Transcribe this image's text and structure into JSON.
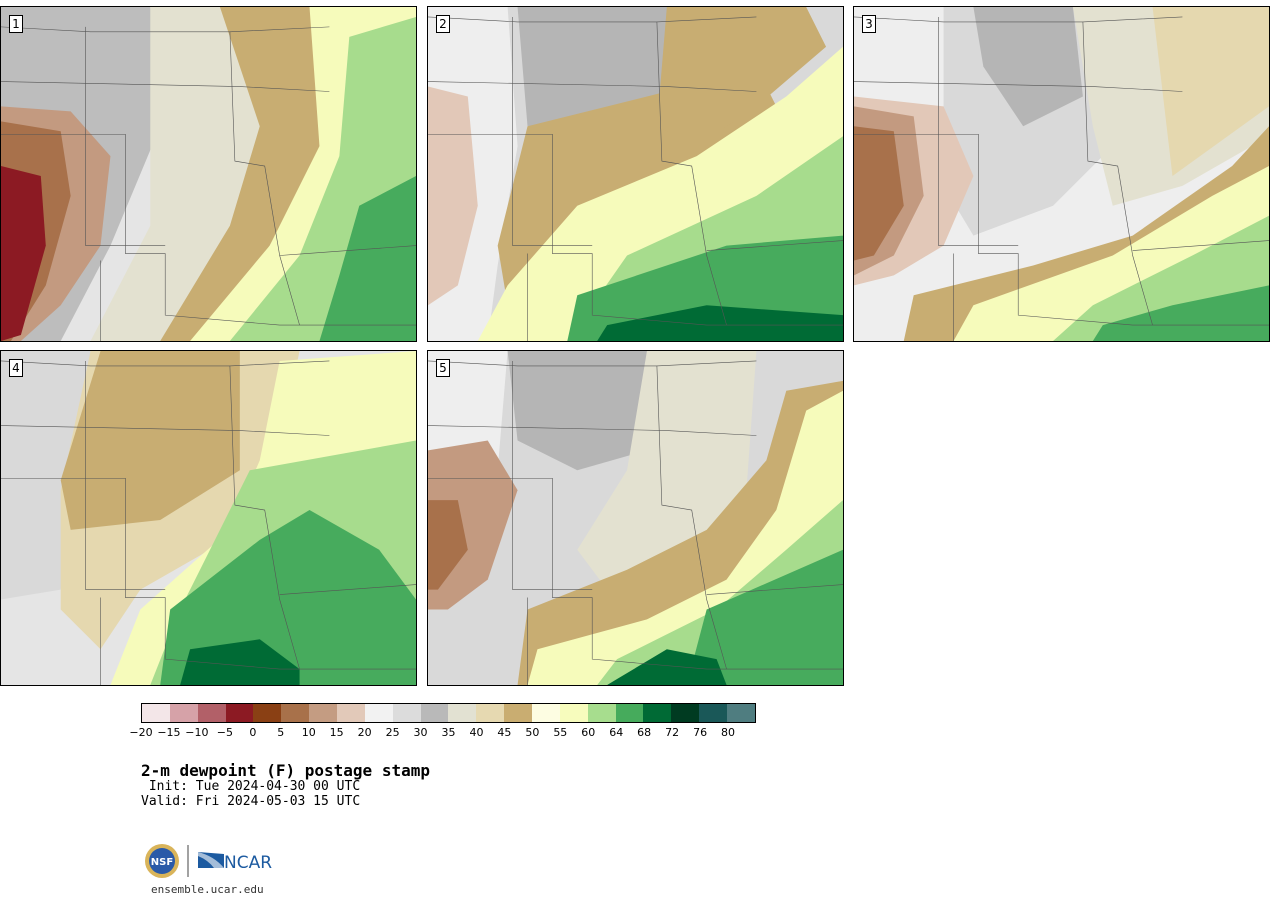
{
  "title": "2-m dewpoint (F) postage stamp",
  "init": " Init: Tue 2024-04-30 00 UTC",
  "valid": "Valid: Fri 2024-05-03 15 UTC",
  "site": "ensemble.ucar.edu",
  "logos": {
    "nsf": "NSF",
    "ncar": "NCAR"
  },
  "panels": [
    {
      "label": "1"
    },
    {
      "label": "2"
    },
    {
      "label": "3"
    },
    {
      "label": "4"
    },
    {
      "label": "5"
    }
  ],
  "colorbar": {
    "colors": [
      "#f3e6e8",
      "#d6a2a8",
      "#b26068",
      "#8c1a23",
      "#8a4014",
      "#a8714a",
      "#c49c82",
      "#e2c9b9",
      "#f2f2f2",
      "#dcdcdc",
      "#b9b9b9",
      "#e2e1d2",
      "#e6d9b1",
      "#c9ad71",
      "#fdfde2",
      "#f7fcbd",
      "#a7dd8e",
      "#46ab5c",
      "#006a35",
      "#003b21",
      "#1a5858",
      "#4f7d80"
    ],
    "ticks": [
      "−20",
      "−15",
      "−10",
      "−5",
      "0",
      "5",
      "10",
      "15",
      "20",
      "25",
      "30",
      "35",
      "40",
      "45",
      "50",
      "55",
      "60",
      "64",
      "68",
      "72",
      "76",
      "80"
    ]
  },
  "palette": {
    "gray_light": "#eeeeee",
    "gray": "#d9d9d9",
    "gray_dark": "#b5b5b5",
    "tan_light": "#e3e1d0",
    "tan": "#e5d8af",
    "tan_dark": "#c8ad72",
    "cream": "#fdfde0",
    "yellow": "#f6fbbb",
    "green_light": "#a7dc8d",
    "green": "#47ab5d",
    "green_dark": "#006b35",
    "brown_light": "#e2c8b8",
    "brown": "#c39a80",
    "brown_dark": "#a8714b",
    "red": "#8c1a23"
  }
}
